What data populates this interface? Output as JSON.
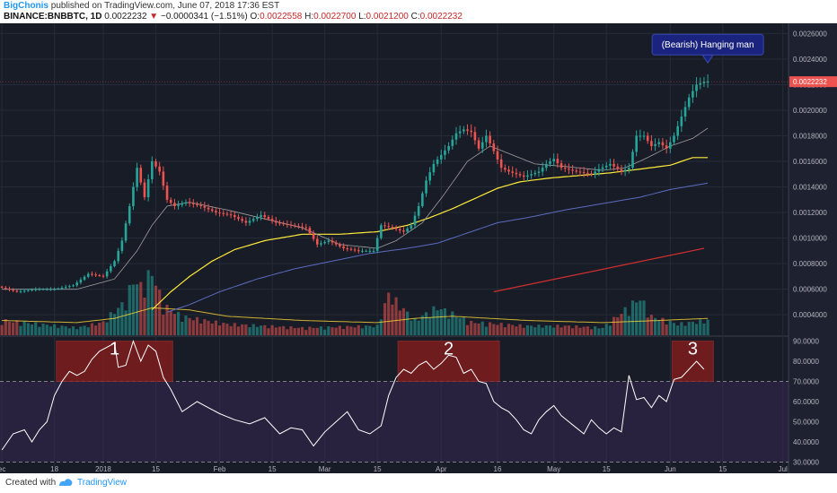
{
  "header": {
    "author": "BigChonis",
    "published": "published on TradingView.com, June 07, 2018 17:36 EST",
    "symbol": "BINANCE:BNBBTC, 1D",
    "last": "0.0022232",
    "change_arrow": "▼",
    "change": "−0.0000341 (−1.51%)",
    "o_label": "O:",
    "o_value": "0.0022558",
    "h_label": "H:",
    "h_value": "0.0022700",
    "l_label": "L:",
    "l_value": "0.0021200",
    "c_label": "C:",
    "c_value": "0.0022232"
  },
  "footer": {
    "created_with": "Created with",
    "brand": "TradingView"
  },
  "colors": {
    "background": "#181c27",
    "up": "#26a69a",
    "down": "#ef5350",
    "ma_fast": "#9e9e9e",
    "ma_mid": "#ffeb3b",
    "ma_slow": "#5c6bc0",
    "trend": "#d32f2f",
    "rsi_line": "#ffffff",
    "rsi_band": "#3f2a5c",
    "zone": "#7f1d1d",
    "annotation_bg": "#1a237e"
  },
  "chart_data": {
    "type": "candlestick",
    "symbol": "BINANCE:BNBBTC",
    "interval": "1D",
    "price_axis": {
      "ticks": [
        "0.0026000",
        "0.0024000",
        "0.0022000",
        "0.0020000",
        "0.0018000",
        "0.0016000",
        "0.0014000",
        "0.0012000",
        "0.0010000",
        "0.0008000",
        "0.0006000",
        "0.0004000"
      ],
      "range": [
        0.00024,
        0.00268
      ],
      "current_price": "0.0022232"
    },
    "x_axis": {
      "labels": [
        {
          "text": "ec",
          "index": 0
        },
        {
          "text": "18",
          "index": 14
        },
        {
          "text": "2018",
          "index": 27
        },
        {
          "text": "15",
          "index": 41
        },
        {
          "text": "Feb",
          "index": 58
        },
        {
          "text": "15",
          "index": 72
        },
        {
          "text": "Mar",
          "index": 86
        },
        {
          "text": "15",
          "index": 100
        },
        {
          "text": "Apr",
          "index": 117
        },
        {
          "text": "16",
          "index": 132
        },
        {
          "text": "May",
          "index": 147
        },
        {
          "text": "15",
          "index": 161
        },
        {
          "text": "Jun",
          "index": 178
        },
        {
          "text": "15",
          "index": 192
        },
        {
          "text": "Jul",
          "index": 208
        }
      ],
      "visible_bars": 210
    },
    "price_path": [
      [
        0,
        0.00062
      ],
      [
        5,
        0.00058
      ],
      [
        10,
        0.0006
      ],
      [
        15,
        0.0006
      ],
      [
        20,
        0.00063
      ],
      [
        24,
        0.00072
      ],
      [
        28,
        0.0007
      ],
      [
        31,
        0.00082
      ],
      [
        33,
        0.00098
      ],
      [
        35,
        0.00125
      ],
      [
        37,
        0.00155
      ],
      [
        39,
        0.00132
      ],
      [
        41,
        0.0016
      ],
      [
        43,
        0.00152
      ],
      [
        45,
        0.0013
      ],
      [
        47,
        0.00125
      ],
      [
        50,
        0.00128
      ],
      [
        54,
        0.00125
      ],
      [
        58,
        0.0012
      ],
      [
        62,
        0.00118
      ],
      [
        66,
        0.00112
      ],
      [
        70,
        0.00118
      ],
      [
        74,
        0.00112
      ],
      [
        78,
        0.0011
      ],
      [
        82,
        0.00108
      ],
      [
        85,
        0.00095
      ],
      [
        88,
        0.00098
      ],
      [
        92,
        0.00092
      ],
      [
        96,
        0.0009
      ],
      [
        100,
        0.0009
      ],
      [
        102,
        0.0011
      ],
      [
        105,
        0.00108
      ],
      [
        108,
        0.00105
      ],
      [
        110,
        0.0011
      ],
      [
        112,
        0.00125
      ],
      [
        114,
        0.00145
      ],
      [
        116,
        0.00158
      ],
      [
        118,
        0.00165
      ],
      [
        120,
        0.00172
      ],
      [
        122,
        0.00182
      ],
      [
        124,
        0.00185
      ],
      [
        126,
        0.00183
      ],
      [
        128,
        0.0017
      ],
      [
        130,
        0.0018
      ],
      [
        132,
        0.00168
      ],
      [
        134,
        0.00155
      ],
      [
        136,
        0.00152
      ],
      [
        140,
        0.00148
      ],
      [
        144,
        0.00152
      ],
      [
        146,
        0.00158
      ],
      [
        148,
        0.00162
      ],
      [
        150,
        0.00155
      ],
      [
        154,
        0.00152
      ],
      [
        158,
        0.0015
      ],
      [
        160,
        0.00154
      ],
      [
        163,
        0.00158
      ],
      [
        166,
        0.00152
      ],
      [
        168,
        0.00155
      ],
      [
        170,
        0.0018
      ],
      [
        172,
        0.0018
      ],
      [
        174,
        0.00172
      ],
      [
        176,
        0.00175
      ],
      [
        178,
        0.0017
      ],
      [
        180,
        0.0018
      ],
      [
        182,
        0.00195
      ],
      [
        184,
        0.0021
      ],
      [
        186,
        0.0022
      ],
      [
        188,
        0.002224
      ]
    ],
    "volume": [
      [
        0,
        8e-05
      ],
      [
        10,
        6e-05
      ],
      [
        20,
        4e-05
      ],
      [
        27,
        7e-05
      ],
      [
        30,
        0.00013
      ],
      [
        33,
        0.00018
      ],
      [
        35,
        0.0003
      ],
      [
        37,
        0.00026
      ],
      [
        40,
        0.00034
      ],
      [
        43,
        0.00016
      ],
      [
        48,
        0.0001
      ],
      [
        60,
        6e-05
      ],
      [
        80,
        4e-05
      ],
      [
        100,
        5e-05
      ],
      [
        103,
        0.00022
      ],
      [
        110,
        8e-05
      ],
      [
        116,
        0.00015
      ],
      [
        125,
        7e-05
      ],
      [
        140,
        5e-05
      ],
      [
        150,
        5e-05
      ],
      [
        160,
        4e-05
      ],
      [
        170,
        0.0002
      ],
      [
        173,
        0.0001
      ],
      [
        180,
        6e-05
      ],
      [
        188,
        8e-05
      ]
    ],
    "ma_fast_path": [
      [
        0,
        0.0006
      ],
      [
        20,
        0.0006
      ],
      [
        30,
        0.00068
      ],
      [
        36,
        0.0009
      ],
      [
        40,
        0.0011
      ],
      [
        44,
        0.00125
      ],
      [
        50,
        0.00128
      ],
      [
        60,
        0.00122
      ],
      [
        70,
        0.00115
      ],
      [
        80,
        0.00108
      ],
      [
        90,
        0.00095
      ],
      [
        100,
        0.00092
      ],
      [
        105,
        0.00098
      ],
      [
        112,
        0.00112
      ],
      [
        118,
        0.00135
      ],
      [
        124,
        0.0016
      ],
      [
        130,
        0.00172
      ],
      [
        136,
        0.00165
      ],
      [
        142,
        0.00158
      ],
      [
        150,
        0.00156
      ],
      [
        160,
        0.00153
      ],
      [
        166,
        0.00155
      ],
      [
        172,
        0.00163
      ],
      [
        178,
        0.00172
      ],
      [
        184,
        0.00178
      ],
      [
        188,
        0.00186
      ]
    ],
    "ma_mid_path": [
      [
        40,
        0.00044
      ],
      [
        45,
        0.00058
      ],
      [
        50,
        0.0007
      ],
      [
        56,
        0.00082
      ],
      [
        62,
        0.00091
      ],
      [
        70,
        0.00098
      ],
      [
        80,
        0.00103
      ],
      [
        90,
        0.00103
      ],
      [
        100,
        0.00105
      ],
      [
        108,
        0.0011
      ],
      [
        114,
        0.00116
      ],
      [
        120,
        0.00123
      ],
      [
        126,
        0.00131
      ],
      [
        132,
        0.00139
      ],
      [
        138,
        0.00144
      ],
      [
        146,
        0.00147
      ],
      [
        154,
        0.00149
      ],
      [
        162,
        0.00151
      ],
      [
        170,
        0.00154
      ],
      [
        178,
        0.00157
      ],
      [
        184,
        0.00163
      ],
      [
        188,
        0.00163
      ]
    ],
    "ma_slow_path": [
      [
        44,
        0.00042
      ],
      [
        50,
        0.00048
      ],
      [
        58,
        0.00058
      ],
      [
        68,
        0.00068
      ],
      [
        78,
        0.00076
      ],
      [
        88,
        0.00082
      ],
      [
        98,
        0.00088
      ],
      [
        108,
        0.00092
      ],
      [
        116,
        0.00096
      ],
      [
        124,
        0.00104
      ],
      [
        132,
        0.00112
      ],
      [
        140,
        0.00116
      ],
      [
        150,
        0.00122
      ],
      [
        160,
        0.00127
      ],
      [
        170,
        0.00132
      ],
      [
        178,
        0.00138
      ],
      [
        188,
        0.00143
      ]
    ],
    "vol_ma_path": [
      [
        0,
        7e-05
      ],
      [
        20,
        6e-05
      ],
      [
        30,
        8e-05
      ],
      [
        40,
        0.00013
      ],
      [
        50,
        0.00012
      ],
      [
        60,
        9e-05
      ],
      [
        80,
        7e-05
      ],
      [
        100,
        6e-05
      ],
      [
        110,
        8e-05
      ],
      [
        120,
        9e-05
      ],
      [
        140,
        7e-05
      ],
      [
        160,
        6e-05
      ],
      [
        175,
        7e-05
      ],
      [
        188,
        8e-05
      ]
    ],
    "trendline": [
      [
        131,
        0.00058
      ],
      [
        187,
        0.00092
      ]
    ],
    "annotation": {
      "text": "(Bearish) Hanging man",
      "index": 188,
      "price": 0.00237
    },
    "rsi": {
      "ticks": [
        "90.0000",
        "80.0000",
        "70.0000",
        "60.0000",
        "50.0000",
        "40.0000",
        "30.0000"
      ],
      "range": [
        28,
        92
      ],
      "levels": [
        70,
        30
      ],
      "path": [
        [
          0,
          36
        ],
        [
          3,
          44
        ],
        [
          6,
          46
        ],
        [
          8,
          40
        ],
        [
          10,
          46
        ],
        [
          12,
          50
        ],
        [
          14,
          63
        ],
        [
          16,
          70
        ],
        [
          18,
          75
        ],
        [
          20,
          73
        ],
        [
          22,
          75
        ],
        [
          24,
          81
        ],
        [
          26,
          85
        ],
        [
          28,
          87
        ],
        [
          30,
          89
        ],
        [
          31,
          77
        ],
        [
          33,
          78
        ],
        [
          35,
          90
        ],
        [
          37,
          80
        ],
        [
          39,
          88
        ],
        [
          41,
          85
        ],
        [
          43,
          72
        ],
        [
          45,
          66
        ],
        [
          48,
          55
        ],
        [
          52,
          60
        ],
        [
          55,
          57
        ],
        [
          58,
          54
        ],
        [
          62,
          51
        ],
        [
          66,
          49
        ],
        [
          70,
          52
        ],
        [
          74,
          44
        ],
        [
          77,
          47
        ],
        [
          80,
          46
        ],
        [
          83,
          38
        ],
        [
          86,
          45
        ],
        [
          89,
          50
        ],
        [
          92,
          55
        ],
        [
          95,
          46
        ],
        [
          98,
          44
        ],
        [
          101,
          48
        ],
        [
          103,
          63
        ],
        [
          105,
          72
        ],
        [
          107,
          76
        ],
        [
          109,
          74
        ],
        [
          111,
          78
        ],
        [
          113,
          80
        ],
        [
          115,
          76
        ],
        [
          117,
          79
        ],
        [
          119,
          83
        ],
        [
          121,
          82
        ],
        [
          123,
          74
        ],
        [
          125,
          76
        ],
        [
          127,
          70
        ],
        [
          129,
          69
        ],
        [
          131,
          60
        ],
        [
          133,
          57
        ],
        [
          135,
          55
        ],
        [
          137,
          51
        ],
        [
          139,
          46
        ],
        [
          141,
          44
        ],
        [
          143,
          51
        ],
        [
          145,
          55
        ],
        [
          147,
          58
        ],
        [
          149,
          53
        ],
        [
          151,
          50
        ],
        [
          153,
          47
        ],
        [
          155,
          44
        ],
        [
          157,
          51
        ],
        [
          159,
          47
        ],
        [
          161,
          44
        ],
        [
          163,
          47
        ],
        [
          165,
          45
        ],
        [
          167,
          73
        ],
        [
          169,
          61
        ],
        [
          171,
          62
        ],
        [
          173,
          57
        ],
        [
          175,
          63
        ],
        [
          177,
          60
        ],
        [
          179,
          71
        ],
        [
          181,
          72
        ],
        [
          183,
          76
        ],
        [
          185,
          80
        ],
        [
          187,
          76
        ]
      ],
      "zones": [
        {
          "label": "1",
          "start": 15,
          "end": 46
        },
        {
          "label": "2",
          "start": 106,
          "end": 133
        },
        {
          "label": "3",
          "start": 179,
          "end": 190
        }
      ]
    }
  }
}
